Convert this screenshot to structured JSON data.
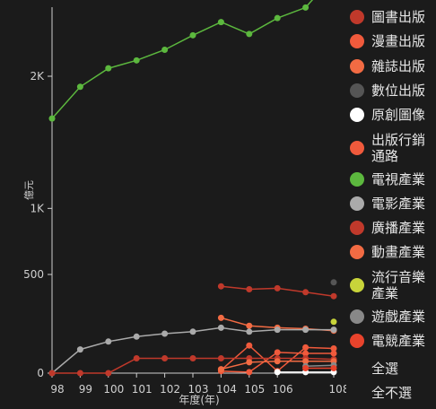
{
  "chart_data": {
    "type": "line",
    "xlabel": "年度(年)",
    "ylabel": "億元",
    "y_axis": {
      "scale": "piecewise",
      "ticks": [
        {
          "value": 0,
          "label": "0"
        },
        {
          "value": 500,
          "label": "500"
        },
        {
          "value": 1000,
          "label": "1K"
        },
        {
          "value": 2000,
          "label": "2K"
        }
      ]
    },
    "x_ticks": [
      "98",
      "99",
      "100",
      "101",
      "102",
      "103",
      "104",
      "105",
      "106",
      "108"
    ],
    "x": [
      98,
      99,
      100,
      101,
      102,
      103,
      104,
      105,
      106,
      107,
      108
    ],
    "series": [
      {
        "name": "圖書出版",
        "color": "#c0392b",
        "values": [
          null,
          null,
          null,
          null,
          null,
          null,
          440,
          425,
          430,
          410,
          390
        ]
      },
      {
        "name": "漫畫出版",
        "color": "#f05a3c",
        "values": [
          null,
          null,
          null,
          null,
          null,
          null,
          15,
          140,
          10,
          130,
          125
        ]
      },
      {
        "name": "雜誌出版",
        "color": "#f26b43",
        "values": [
          null,
          null,
          null,
          null,
          null,
          null,
          280,
          240,
          230,
          225,
          215
        ]
      },
      {
        "name": "數位出版",
        "color": "#555555",
        "values": [
          null,
          null,
          null,
          null,
          null,
          null,
          null,
          null,
          null,
          null,
          460
        ]
      },
      {
        "name": "原創圖像",
        "color": "#ffffff",
        "values": [
          null,
          null,
          null,
          null,
          null,
          null,
          null,
          null,
          5,
          5,
          5
        ]
      },
      {
        "name": "出版行銷通路",
        "color": "#f05a3c",
        "values": [
          null,
          null,
          null,
          null,
          null,
          null,
          10,
          5,
          105,
          100,
          100
        ]
      },
      {
        "name": "電視產業",
        "color": "#5cb83e",
        "values": [
          1680,
          1920,
          2060,
          2120,
          2200,
          2310,
          2410,
          2320,
          2440,
          2520,
          2760
        ]
      },
      {
        "name": "電影產業",
        "color": "#aaaaaa",
        "values": [
          0,
          120,
          160,
          185,
          200,
          210,
          230,
          210,
          220,
          220,
          220
        ]
      },
      {
        "name": "廣播產業",
        "color": "#c0392b",
        "values": [
          0,
          0,
          0,
          75,
          75,
          75,
          75,
          75,
          75,
          75,
          70
        ]
      },
      {
        "name": "動畫產業",
        "color": "#f26b43",
        "values": [
          null,
          null,
          null,
          null,
          null,
          null,
          20,
          55,
          60,
          60,
          60
        ]
      },
      {
        "name": "流行音樂產業",
        "color": "#c8d43a",
        "values": [
          null,
          null,
          null,
          null,
          null,
          null,
          null,
          null,
          null,
          null,
          260
        ]
      },
      {
        "name": "遊戲產業",
        "color": "#888888",
        "values": [
          null,
          null,
          null,
          null,
          null,
          null,
          null,
          null,
          null,
          35,
          40
        ]
      },
      {
        "name": "電競產業",
        "color": "#e8432c",
        "values": [
          null,
          null,
          null,
          null,
          null,
          null,
          null,
          null,
          null,
          25,
          25
        ]
      }
    ]
  },
  "legend_controls": {
    "select_all": "全選",
    "select_none": "全不選"
  }
}
